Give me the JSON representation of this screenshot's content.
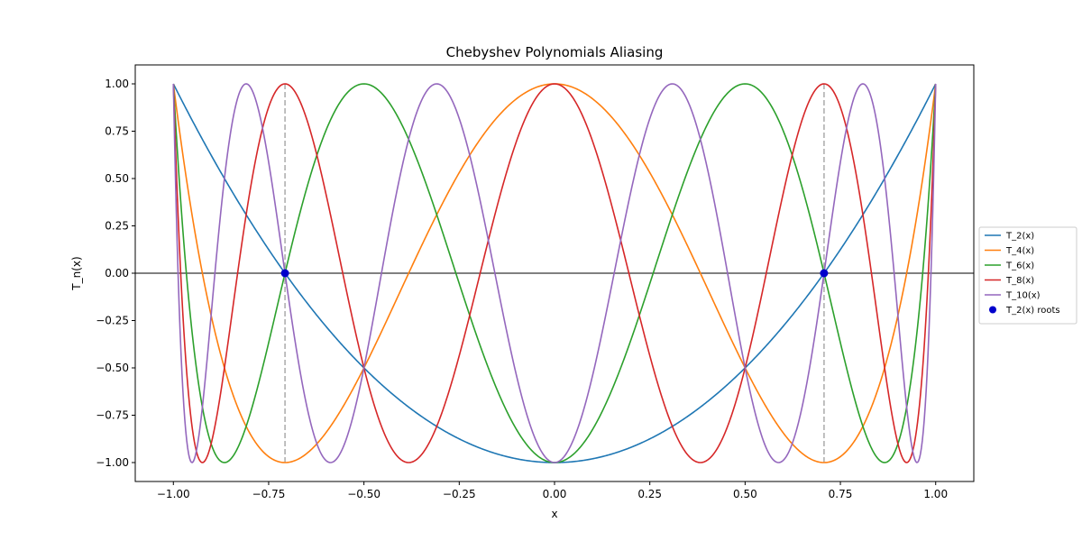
{
  "chart_data": {
    "type": "line",
    "title": "Chebyshev Polynomials Aliasing",
    "xlabel": "x",
    "ylabel": "T_n(x)",
    "xlim": [
      -1.1,
      1.1
    ],
    "ylim": [
      -1.1,
      1.1
    ],
    "x_ticks": [
      -1.0,
      -0.75,
      -0.5,
      -0.25,
      0.0,
      0.25,
      0.5,
      0.75,
      1.0
    ],
    "x_tick_labels": [
      "−1.00",
      "−0.75",
      "−0.50",
      "−0.25",
      "0.00",
      "0.25",
      "0.50",
      "0.75",
      "1.00"
    ],
    "y_ticks": [
      -1.0,
      -0.75,
      -0.5,
      -0.25,
      0.0,
      0.25,
      0.5,
      0.75,
      1.0
    ],
    "y_tick_labels": [
      "−1.00",
      "−0.75",
      "−0.50",
      "−0.25",
      "0.00",
      "0.25",
      "0.50",
      "0.75",
      "1.00"
    ],
    "grid": false,
    "legend_position": "outside-right",
    "x_range": [
      -1.0,
      1.0
    ],
    "series": [
      {
        "name": "T_2(x)",
        "degree": 2,
        "color": "#1f77b4"
      },
      {
        "name": "T_4(x)",
        "degree": 4,
        "color": "#ff7f0e"
      },
      {
        "name": "T_6(x)",
        "degree": 6,
        "color": "#2ca02c"
      },
      {
        "name": "T_8(x)",
        "degree": 8,
        "color": "#d62728"
      },
      {
        "name": "T_10(x)",
        "degree": 10,
        "color": "#9467bd"
      }
    ],
    "roots": {
      "name": "T_2(x) roots",
      "x": [
        -0.7071,
        0.7071
      ],
      "y": [
        0.0,
        0.0
      ],
      "color": "#0000cc"
    },
    "hline": {
      "y": 0.0,
      "color": "#000000"
    },
    "vlines": {
      "x": [
        -0.7071,
        0.7071
      ],
      "color": "#aaaaaa",
      "style": "dashed"
    }
  }
}
